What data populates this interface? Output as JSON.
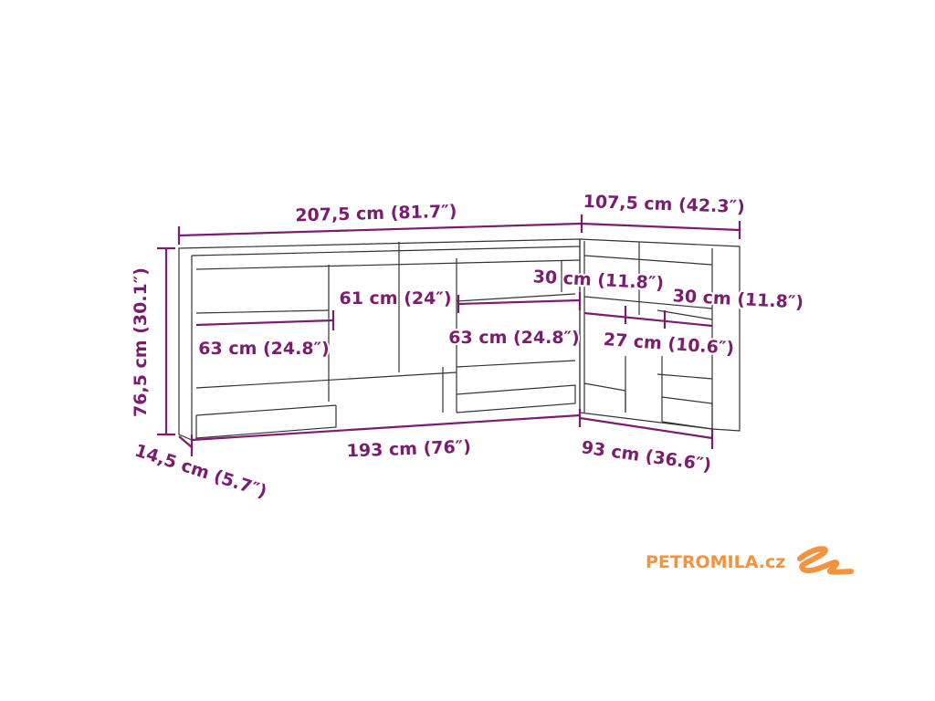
{
  "dimensions": {
    "left_width": "207,5 cm (81.7″)",
    "right_width": "107,5 cm (42.3″)",
    "height": "76,5 cm (30.1″)",
    "middle_span": "61 cm (24″)",
    "right_shelf_1": "30 cm (11.8″)",
    "right_shelf_2": "30 cm (11.8″)",
    "left_shelf": "63 cm (24.8″)",
    "center_shelf": "63 cm (24.8″)",
    "right_inner": "27 cm (10.6″)",
    "left_inner_width": "193 cm (76″)",
    "right_inner_width": "93 cm (36.6″)",
    "depth": "14,5 cm (5.7″)"
  },
  "colors": {
    "dimension": "#7b1c6f",
    "logo": "#f5923e"
  },
  "logo": {
    "text": "PETROMILA.cz"
  }
}
